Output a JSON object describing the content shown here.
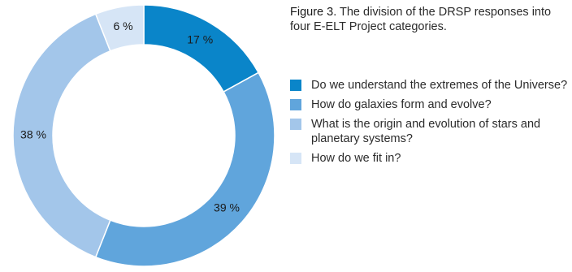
{
  "caption": {
    "figure_number": "Figure 3.",
    "text": "The division of the DRSP responses into four E-ELT Project categories."
  },
  "chart_data": {
    "type": "pie",
    "title": "",
    "series": [
      {
        "name": "Do we understand the extremes of the Universe?",
        "value": 17,
        "label": "17 %",
        "color": "#0a85c9"
      },
      {
        "name": "How do galaxies form and evolve?",
        "value": 39,
        "label": "39 %",
        "color": "#60a5dc"
      },
      {
        "name": "What is the origin and evolution of stars and planetary systems?",
        "value": 38,
        "label": "38 %",
        "color": "#a3c6ea"
      },
      {
        "name": "How do we fit in?",
        "value": 6,
        "label": "6 %",
        "color": "#d6e5f6"
      }
    ],
    "donut": true,
    "start_angle": "12 o'clock",
    "direction": "clockwise",
    "legend_placement": "right"
  }
}
